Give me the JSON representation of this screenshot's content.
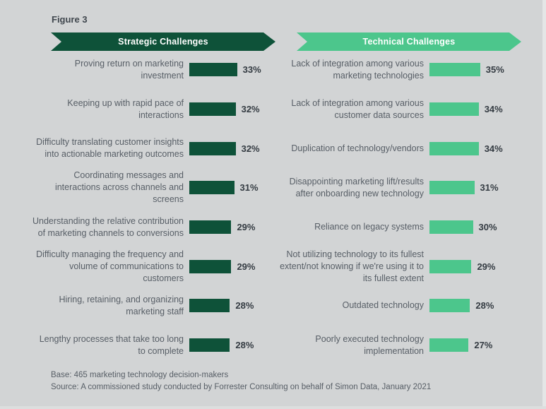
{
  "figure_label": "Figure 3",
  "colors": {
    "background": "#d2d4d5",
    "strategic_green": "#0e5239",
    "technical_green": "#4cc68c",
    "label_text": "#575e66",
    "value_text": "#343b42",
    "banner_text": "#ffffff"
  },
  "chart_data": {
    "type": "bar",
    "orientation": "horizontal",
    "unit": "%",
    "xlim": [
      0,
      40
    ],
    "grid": false,
    "legend": false,
    "panels": [
      {
        "title": "Strategic Challenges",
        "color": "#0e5239",
        "categories": [
          "Proving return on marketing investment",
          "Keeping up with rapid pace of interactions",
          "Difficulty translating customer insights into actionable marketing outcomes",
          "Coordinating messages and interactions across channels and screens",
          "Understanding  the relative contribution of marketing channels to conversions",
          "Difficulty managing the frequency and volume of communications to customers",
          "Hiring, retaining, and organizing marketing staff",
          "Lengthy processes that take too long to complete"
        ],
        "values": [
          33,
          32,
          32,
          31,
          29,
          29,
          28,
          28
        ]
      },
      {
        "title": "Technical Challenges",
        "color": "#4cc68c",
        "categories": [
          "Lack of integration among various marketing technologies",
          "Lack of integration among various customer data sources",
          "Duplication of technology/vendors",
          "Disappointing marketing lift/results after onboarding new technology",
          "Reliance on legacy systems",
          "Not utilizing technology to its fullest extent/not knowing if we're using it to its fullest extent",
          "Outdated technology",
          "Poorly executed technology implementation"
        ],
        "values": [
          35,
          34,
          34,
          31,
          30,
          29,
          28,
          27
        ]
      }
    ]
  },
  "footer": {
    "base": "Base: 465 marketing technology decision-makers",
    "source": "Source: A commissioned study conducted by Forrester Consulting on behalf of Simon Data, January 2021"
  }
}
